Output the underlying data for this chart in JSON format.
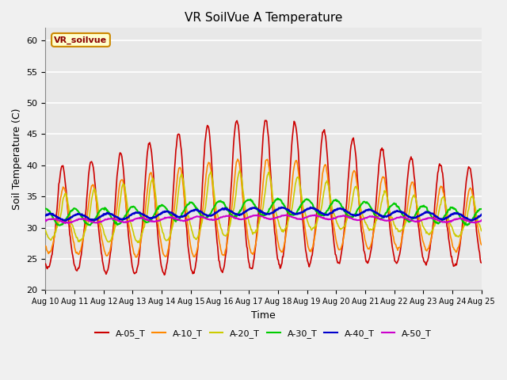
{
  "title": "VR SoilVue A Temperature",
  "xlabel": "Time",
  "ylabel": "Soil Temperature (C)",
  "ylim": [
    20,
    62
  ],
  "yticks": [
    20,
    25,
    30,
    35,
    40,
    45,
    50,
    55,
    60
  ],
  "bg_color": "#e8e8e8",
  "fig_bg_color": "#f0f0f0",
  "series_colors": {
    "A-05_T": "#cc0000",
    "A-10_T": "#ff8800",
    "A-20_T": "#cccc00",
    "A-30_T": "#00cc00",
    "A-40_T": "#0000cc",
    "A-50_T": "#cc00cc"
  },
  "legend_label": "VR_soilvue",
  "legend_bg": "#ffffcc",
  "legend_border": "#cc8800",
  "legend_text_color": "#8B0000"
}
